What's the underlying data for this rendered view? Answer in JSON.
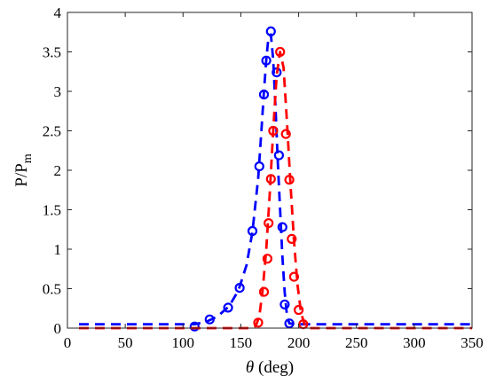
{
  "chart_data": {
    "type": "line",
    "xlabel_symbol": "θ",
    "xlabel_unit": " (deg)",
    "ylabel_main": "P/P",
    "ylabel_sub": "m",
    "xlim": [
      0,
      350
    ],
    "ylim": [
      0,
      4
    ],
    "xticks": [
      0,
      50,
      100,
      150,
      200,
      250,
      300,
      350
    ],
    "yticks": [
      0,
      0.5,
      1,
      1.5,
      2,
      2.5,
      3,
      3.5,
      4
    ],
    "ytick_labels": [
      "0",
      "0.5",
      "1",
      "1.5",
      "2",
      "2.5",
      "3",
      "3.5",
      "4"
    ],
    "grid": false,
    "series": [
      {
        "color": "#0000ff",
        "style": "dashed",
        "line": [
          [
            10,
            0.05
          ],
          [
            100,
            0.05
          ],
          [
            110,
            0.05
          ],
          [
            120,
            0.08
          ],
          [
            130,
            0.15
          ],
          [
            140,
            0.28
          ],
          [
            148,
            0.48
          ],
          [
            155,
            0.8
          ],
          [
            160,
            1.22
          ],
          [
            165,
            1.9
          ],
          [
            168,
            2.55
          ],
          [
            170,
            3.0
          ],
          [
            172,
            3.4
          ],
          [
            174,
            3.7
          ],
          [
            176,
            3.72
          ],
          [
            178,
            3.4
          ],
          [
            180,
            2.8
          ],
          [
            182,
            2.1
          ],
          [
            184,
            1.5
          ],
          [
            186,
            0.9
          ],
          [
            188,
            0.45
          ],
          [
            190,
            0.15
          ],
          [
            192,
            0.06
          ],
          [
            200,
            0.05
          ],
          [
            350,
            0.05
          ]
        ],
        "markers": [
          [
            110,
            0.02
          ],
          [
            123,
            0.11
          ],
          [
            139,
            0.26
          ],
          [
            149,
            0.51
          ],
          [
            160,
            1.23
          ],
          [
            166,
            2.05
          ],
          [
            170,
            2.96
          ],
          [
            172,
            3.39
          ],
          [
            176,
            3.76
          ],
          [
            181,
            3.24
          ],
          [
            183,
            2.19
          ],
          [
            186,
            1.28
          ],
          [
            188,
            0.3
          ],
          [
            192,
            0.06
          ]
        ]
      },
      {
        "color": "#ff0000",
        "style": "dashed",
        "line": [
          [
            10,
            0.0
          ],
          [
            160,
            0.0
          ],
          [
            163,
            0.03
          ],
          [
            166,
            0.15
          ],
          [
            169,
            0.5
          ],
          [
            172,
            1.0
          ],
          [
            175,
            1.7
          ],
          [
            178,
            2.5
          ],
          [
            181,
            3.2
          ],
          [
            184,
            3.5
          ],
          [
            187,
            3.3
          ],
          [
            190,
            2.6
          ],
          [
            193,
            1.8
          ],
          [
            196,
            1.1
          ],
          [
            199,
            0.55
          ],
          [
            202,
            0.2
          ],
          [
            205,
            0.05
          ],
          [
            208,
            0.0
          ],
          [
            350,
            0.0
          ]
        ],
        "markers": [
          [
            165,
            0.07
          ],
          [
            170,
            0.46
          ],
          [
            173,
            0.88
          ],
          [
            174,
            1.33
          ],
          [
            176,
            1.89
          ],
          [
            178,
            2.5
          ],
          [
            184,
            3.5
          ],
          [
            189,
            2.46
          ],
          [
            192,
            1.88
          ],
          [
            194,
            1.13
          ],
          [
            196,
            0.65
          ],
          [
            200,
            0.23
          ],
          [
            204,
            0.05
          ]
        ]
      }
    ]
  }
}
